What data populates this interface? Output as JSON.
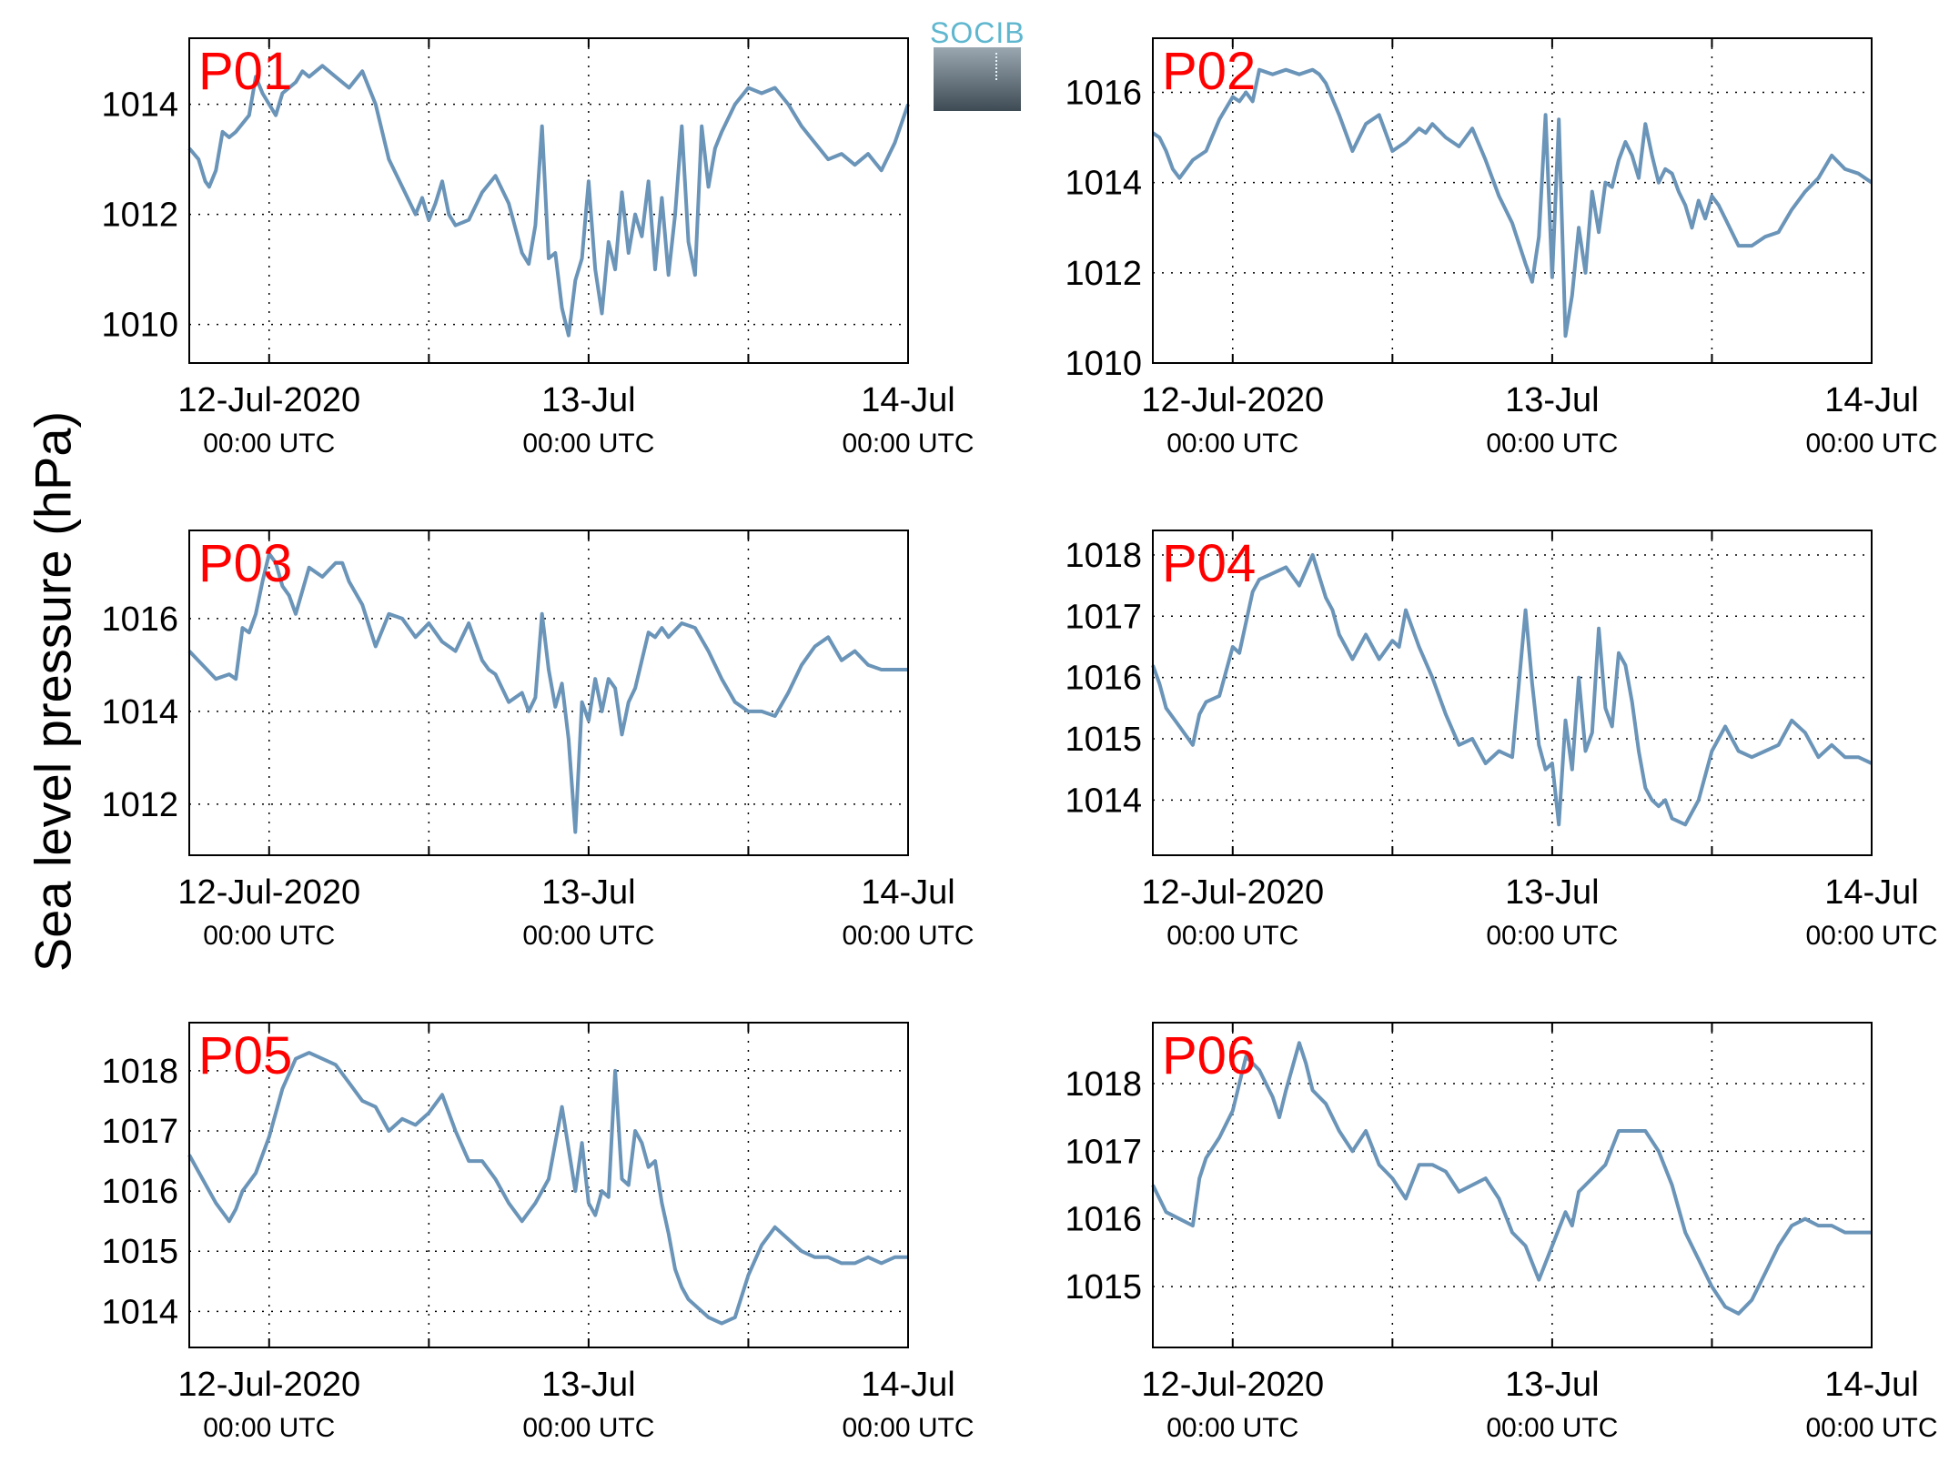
{
  "ylabel": "Sea level pressure (hPa)",
  "logo": {
    "text": "SOCIB"
  },
  "x_ticks": [
    {
      "x": 0,
      "line1": "12-Jul-2020",
      "line2": "00:00 UTC"
    },
    {
      "x": 24,
      "line1": "13-Jul",
      "line2": "00:00 UTC"
    },
    {
      "x": 48,
      "line1": "14-Jul",
      "line2": "00:00 UTC"
    }
  ],
  "chart_data": [
    {
      "type": "line",
      "title": "P01",
      "color": "#6a94b8",
      "xlim": [
        -6,
        48
      ],
      "ylim": [
        1009.3,
        1015.2
      ],
      "yticks": [
        1010,
        1012,
        1014
      ],
      "x": [
        -6,
        -5.3,
        -4.8,
        -4.5,
        -4,
        -3.5,
        -3,
        -2.5,
        -1.5,
        -1,
        -0.5,
        0,
        0.5,
        1,
        1.5,
        2,
        2.5,
        3,
        4,
        5,
        6,
        7,
        8,
        9,
        10,
        11,
        11.5,
        12,
        12.5,
        13,
        13.5,
        14,
        15,
        16,
        17,
        18,
        19,
        19.5,
        20,
        20.5,
        21,
        21.5,
        22,
        22.5,
        23,
        23.5,
        24,
        24.5,
        25,
        25.5,
        26,
        26.5,
        27,
        27.5,
        28,
        28.5,
        29,
        29.5,
        30,
        30.5,
        31,
        31.5,
        32,
        32.5,
        33,
        33.5,
        34,
        35,
        36,
        37,
        38,
        39,
        40,
        41,
        42,
        43,
        44,
        45,
        46,
        47,
        48
      ],
      "y": [
        1013.2,
        1013.0,
        1012.6,
        1012.5,
        1012.8,
        1013.5,
        1013.4,
        1013.5,
        1013.8,
        1014.5,
        1014.2,
        1014.0,
        1013.8,
        1014.2,
        1014.3,
        1014.4,
        1014.6,
        1014.5,
        1014.7,
        1014.5,
        1014.3,
        1014.6,
        1014.0,
        1013.0,
        1012.5,
        1012.0,
        1012.3,
        1011.9,
        1012.2,
        1012.6,
        1012.0,
        1011.8,
        1011.9,
        1012.4,
        1012.7,
        1012.2,
        1011.3,
        1011.1,
        1011.8,
        1013.6,
        1011.2,
        1011.3,
        1010.3,
        1009.8,
        1010.8,
        1011.2,
        1012.6,
        1011.0,
        1010.2,
        1011.5,
        1011.0,
        1012.4,
        1011.3,
        1012.0,
        1011.6,
        1012.6,
        1011.0,
        1012.3,
        1010.9,
        1012.0,
        1013.6,
        1011.5,
        1010.9,
        1013.6,
        1012.5,
        1013.2,
        1013.5,
        1014.0,
        1014.3,
        1014.2,
        1014.3,
        1014.0,
        1013.6,
        1013.3,
        1013.0,
        1013.1,
        1012.9,
        1013.1,
        1012.8,
        1013.3,
        1014.0
      ]
    },
    {
      "type": "line",
      "title": "P02",
      "color": "#6a94b8",
      "xlim": [
        -6,
        48
      ],
      "ylim": [
        1010,
        1017.2
      ],
      "yticks": [
        1010,
        1012,
        1014,
        1016
      ],
      "x": [
        -6,
        -5.5,
        -5,
        -4.5,
        -4,
        -3,
        -2,
        -1,
        0,
        0.5,
        1,
        1.5,
        2,
        3,
        4,
        5,
        6,
        6.5,
        7,
        8,
        9,
        10,
        11,
        12,
        13,
        14,
        14.5,
        15,
        16,
        17,
        18,
        19,
        20,
        21,
        22,
        22.5,
        23,
        23.5,
        24,
        24.5,
        25,
        25.5,
        26,
        26.5,
        27,
        27.5,
        28,
        28.5,
        29,
        29.5,
        30,
        30.5,
        31,
        31.5,
        32,
        32.5,
        33,
        33.5,
        34,
        34.5,
        35,
        35.5,
        36,
        36.5,
        37,
        38,
        39,
        40,
        41,
        42,
        43,
        44,
        45,
        46,
        47,
        48
      ],
      "y": [
        1015.1,
        1015.0,
        1014.7,
        1014.3,
        1014.1,
        1014.5,
        1014.7,
        1015.4,
        1015.9,
        1015.8,
        1016.0,
        1015.8,
        1016.5,
        1016.4,
        1016.5,
        1016.4,
        1016.5,
        1016.4,
        1016.2,
        1015.5,
        1014.7,
        1015.3,
        1015.5,
        1014.7,
        1014.9,
        1015.2,
        1015.1,
        1015.3,
        1015.0,
        1014.8,
        1015.2,
        1014.5,
        1013.7,
        1013.1,
        1012.2,
        1011.8,
        1012.8,
        1015.5,
        1011.9,
        1015.4,
        1010.6,
        1011.5,
        1013.0,
        1012.0,
        1013.8,
        1012.9,
        1014.0,
        1013.9,
        1014.5,
        1014.9,
        1014.6,
        1014.1,
        1015.3,
        1014.6,
        1014.0,
        1014.3,
        1014.2,
        1013.8,
        1013.5,
        1013.0,
        1013.6,
        1013.2,
        1013.7,
        1013.5,
        1013.2,
        1012.6,
        1012.6,
        1012.8,
        1012.9,
        1013.4,
        1013.8,
        1014.1,
        1014.6,
        1014.3,
        1014.2,
        1014.0
      ]
    },
    {
      "type": "line",
      "title": "P03",
      "color": "#6a94b8",
      "xlim": [
        -6,
        48
      ],
      "ylim": [
        1010.9,
        1017.9
      ],
      "yticks": [
        1012,
        1014,
        1016
      ],
      "x": [
        -6,
        -5,
        -4,
        -3,
        -2.5,
        -2,
        -1.5,
        -1,
        -0.5,
        0,
        0.5,
        1,
        1.5,
        2,
        3,
        4,
        5,
        5.5,
        6,
        7,
        8,
        9,
        10,
        11,
        12,
        13,
        14,
        15,
        16,
        16.5,
        17,
        18,
        19,
        19.5,
        20,
        20.5,
        21,
        21.5,
        22,
        22.5,
        23,
        23.5,
        24,
        24.5,
        25,
        25.5,
        26,
        26.5,
        27,
        27.5,
        28,
        28.5,
        29,
        29.5,
        30,
        31,
        32,
        33,
        34,
        35,
        36,
        37,
        38,
        39,
        40,
        41,
        42,
        43,
        44,
        45,
        46,
        47,
        48
      ],
      "y": [
        1015.3,
        1015.0,
        1014.7,
        1014.8,
        1014.7,
        1015.8,
        1015.7,
        1016.1,
        1016.8,
        1017.4,
        1017.2,
        1016.7,
        1016.5,
        1016.1,
        1017.1,
        1016.9,
        1017.2,
        1017.2,
        1016.8,
        1016.3,
        1015.4,
        1016.1,
        1016.0,
        1015.6,
        1015.9,
        1015.5,
        1015.3,
        1015.9,
        1015.1,
        1014.9,
        1014.8,
        1014.2,
        1014.4,
        1014.0,
        1014.3,
        1016.1,
        1014.9,
        1014.1,
        1014.6,
        1013.4,
        1011.4,
        1014.2,
        1013.8,
        1014.7,
        1014.0,
        1014.7,
        1014.5,
        1013.5,
        1014.2,
        1014.5,
        1015.1,
        1015.7,
        1015.6,
        1015.8,
        1015.6,
        1015.9,
        1015.8,
        1015.3,
        1014.7,
        1014.2,
        1014.0,
        1014.0,
        1013.9,
        1014.4,
        1015.0,
        1015.4,
        1015.6,
        1015.1,
        1015.3,
        1015.0,
        1014.9,
        1014.9,
        1014.9
      ]
    },
    {
      "type": "line",
      "title": "P04",
      "color": "#6a94b8",
      "xlim": [
        -6,
        48
      ],
      "ylim": [
        1013.1,
        1018.4
      ],
      "yticks": [
        1014,
        1015,
        1016,
        1017,
        1018
      ],
      "x": [
        -6,
        -5.5,
        -5,
        -4,
        -3,
        -2.5,
        -2,
        -1,
        0,
        0.5,
        1,
        1.5,
        2,
        3,
        4,
        5,
        6,
        7,
        7.5,
        8,
        9,
        10,
        11,
        12,
        12.5,
        13,
        14,
        15,
        16,
        17,
        18,
        19,
        20,
        21,
        22,
        22.5,
        23,
        23.5,
        24,
        24.5,
        25,
        25.5,
        26,
        26.5,
        27,
        27.5,
        28,
        28.5,
        29,
        29.5,
        30,
        30.5,
        31,
        31.5,
        32,
        32.5,
        33,
        34,
        35,
        36,
        37,
        38,
        39,
        40,
        41,
        42,
        43,
        44,
        45,
        46,
        47,
        48
      ],
      "y": [
        1016.2,
        1015.9,
        1015.5,
        1015.2,
        1014.9,
        1015.4,
        1015.6,
        1015.7,
        1016.5,
        1016.4,
        1016.9,
        1017.4,
        1017.6,
        1017.7,
        1017.8,
        1017.5,
        1018.0,
        1017.3,
        1017.1,
        1016.7,
        1016.3,
        1016.7,
        1016.3,
        1016.6,
        1016.5,
        1017.1,
        1016.5,
        1016.0,
        1015.4,
        1014.9,
        1015.0,
        1014.6,
        1014.8,
        1014.7,
        1017.1,
        1015.9,
        1014.9,
        1014.5,
        1014.6,
        1013.6,
        1015.3,
        1014.5,
        1016.0,
        1014.8,
        1015.1,
        1016.8,
        1015.5,
        1015.2,
        1016.4,
        1016.2,
        1015.6,
        1014.8,
        1014.2,
        1014.0,
        1013.9,
        1014.0,
        1013.7,
        1013.6,
        1014.0,
        1014.8,
        1015.2,
        1014.8,
        1014.7,
        1014.8,
        1014.9,
        1015.3,
        1015.1,
        1014.7,
        1014.9,
        1014.7,
        1014.7,
        1014.6
      ]
    },
    {
      "type": "line",
      "title": "P05",
      "color": "#6a94b8",
      "xlim": [
        -6,
        48
      ],
      "ylim": [
        1013.4,
        1018.8
      ],
      "yticks": [
        1014,
        1015,
        1016,
        1017,
        1018
      ],
      "x": [
        -6,
        -5,
        -4,
        -3,
        -2.5,
        -2,
        -1,
        0,
        1,
        2,
        3,
        4,
        5,
        6,
        7,
        8,
        9,
        10,
        11,
        12,
        13,
        14,
        15,
        16,
        17,
        18,
        19,
        20,
        21,
        22,
        23,
        23.5,
        24,
        24.5,
        25,
        25.5,
        26,
        26.5,
        27,
        27.5,
        28,
        28.5,
        29,
        29.5,
        30,
        30.5,
        31,
        31.5,
        32,
        33,
        34,
        35,
        36,
        37,
        38,
        39,
        40,
        41,
        42,
        43,
        44,
        45,
        46,
        47,
        48
      ],
      "y": [
        1016.6,
        1016.2,
        1015.8,
        1015.5,
        1015.7,
        1016.0,
        1016.3,
        1016.9,
        1017.7,
        1018.2,
        1018.3,
        1018.2,
        1018.1,
        1017.8,
        1017.5,
        1017.4,
        1017.0,
        1017.2,
        1017.1,
        1017.3,
        1017.6,
        1017.0,
        1016.5,
        1016.5,
        1016.2,
        1015.8,
        1015.5,
        1015.8,
        1016.2,
        1017.4,
        1016.0,
        1016.8,
        1015.8,
        1015.6,
        1016.0,
        1015.9,
        1018.0,
        1016.2,
        1016.1,
        1017.0,
        1016.8,
        1016.4,
        1016.5,
        1015.8,
        1015.3,
        1014.7,
        1014.4,
        1014.2,
        1014.1,
        1013.9,
        1013.8,
        1013.9,
        1014.6,
        1015.1,
        1015.4,
        1015.2,
        1015.0,
        1014.9,
        1014.9,
        1014.8,
        1014.8,
        1014.9,
        1014.8,
        1014.9,
        1014.9
      ]
    },
    {
      "type": "line",
      "title": "P06",
      "color": "#6a94b8",
      "xlim": [
        -6,
        48
      ],
      "ylim": [
        1014.1,
        1018.9
      ],
      "yticks": [
        1015,
        1016,
        1017,
        1018
      ],
      "x": [
        -6,
        -5,
        -4,
        -3,
        -2.5,
        -2,
        -1,
        0,
        1,
        2,
        3,
        3.5,
        4,
        5,
        5.5,
        6,
        7,
        8,
        9,
        10,
        11,
        12,
        13,
        14,
        15,
        16,
        17,
        18,
        19,
        20,
        21,
        22,
        23,
        24,
        25,
        25.5,
        26,
        27,
        28,
        29,
        30,
        31,
        32,
        33,
        34,
        35,
        36,
        37,
        38,
        39,
        40,
        41,
        42,
        43,
        44,
        45,
        46,
        47,
        48
      ],
      "y": [
        1016.5,
        1016.1,
        1016.0,
        1015.9,
        1016.6,
        1016.9,
        1017.2,
        1017.6,
        1018.4,
        1018.2,
        1017.8,
        1017.5,
        1017.9,
        1018.6,
        1018.3,
        1017.9,
        1017.7,
        1017.3,
        1017.0,
        1017.3,
        1016.8,
        1016.6,
        1016.3,
        1016.8,
        1016.8,
        1016.7,
        1016.4,
        1016.5,
        1016.6,
        1016.3,
        1015.8,
        1015.6,
        1015.1,
        1015.6,
        1016.1,
        1015.9,
        1016.4,
        1016.6,
        1016.8,
        1017.3,
        1017.3,
        1017.3,
        1017.0,
        1016.5,
        1015.8,
        1015.4,
        1015.0,
        1014.7,
        1014.6,
        1014.8,
        1015.2,
        1015.6,
        1015.9,
        1016.0,
        1015.9,
        1015.9,
        1015.8,
        1015.8,
        1015.8
      ]
    }
  ]
}
